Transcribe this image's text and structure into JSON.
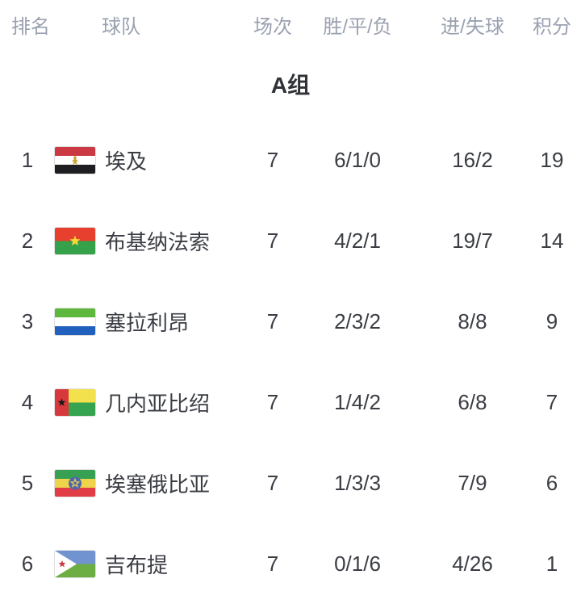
{
  "table": {
    "headers": {
      "rank": "排名",
      "team": "球队",
      "matches": "场次",
      "wdl": "胜/平/负",
      "goals": "进/失球",
      "points": "积分"
    },
    "group": "A组",
    "rows": [
      {
        "rank": "1",
        "team": "埃及",
        "flag": "egypt",
        "matches": "7",
        "wdl": "6/1/0",
        "goals": "16/2",
        "points": "19"
      },
      {
        "rank": "2",
        "team": "布基纳法索",
        "flag": "burkina_faso",
        "matches": "7",
        "wdl": "4/2/1",
        "goals": "19/7",
        "points": "14"
      },
      {
        "rank": "3",
        "team": "塞拉利昂",
        "flag": "sierra_leone",
        "matches": "7",
        "wdl": "2/3/2",
        "goals": "8/8",
        "points": "9"
      },
      {
        "rank": "4",
        "team": "几内亚比绍",
        "flag": "guinea_bissau",
        "matches": "7",
        "wdl": "1/4/2",
        "goals": "6/8",
        "points": "7"
      },
      {
        "rank": "5",
        "team": "埃塞俄比亚",
        "flag": "ethiopia",
        "matches": "7",
        "wdl": "1/3/3",
        "goals": "7/9",
        "points": "6"
      },
      {
        "rank": "6",
        "team": "吉布提",
        "flag": "djibouti",
        "matches": "7",
        "wdl": "0/1/6",
        "goals": "4/26",
        "points": "1"
      }
    ]
  },
  "flags": {
    "egypt": {
      "type": "h-stripes",
      "stripes": [
        "#cb3a42",
        "#ffffff",
        "#1d1d22"
      ],
      "emblem": "eagle",
      "emblem_color": "#c9a22f"
    },
    "burkina_faso": {
      "type": "h-stripes",
      "stripes": [
        "#e8402f",
        "#35a14b"
      ],
      "emblem": "star",
      "emblem_color": "#f4d83a"
    },
    "sierra_leone": {
      "type": "h-stripes",
      "stripes": [
        "#5eb83d",
        "#ffffff",
        "#2161bd"
      ]
    },
    "guinea_bissau": {
      "type": "vband-hstripes",
      "band": "#d6383c",
      "band_star_color": "#1a1a1a",
      "stripes": [
        "#f3e04d",
        "#35a34f"
      ]
    },
    "ethiopia": {
      "type": "h-stripes",
      "stripes": [
        "#38a053",
        "#eed44a",
        "#e03d46"
      ],
      "emblem": "disc-star",
      "disc": "#4f66ac",
      "emblem_color": "#eed44a"
    },
    "djibouti": {
      "type": "h-stripes",
      "stripes": [
        "#7193cf",
        "#6cae43"
      ],
      "emblem": "triangle-star",
      "triangle": "#ffffff",
      "emblem_color": "#cc3a44"
    }
  },
  "colors": {
    "background": "#ffffff",
    "header_text": "#9aa1b0",
    "body_text": "#3a3d43",
    "group_title_text": "#2f3237"
  }
}
